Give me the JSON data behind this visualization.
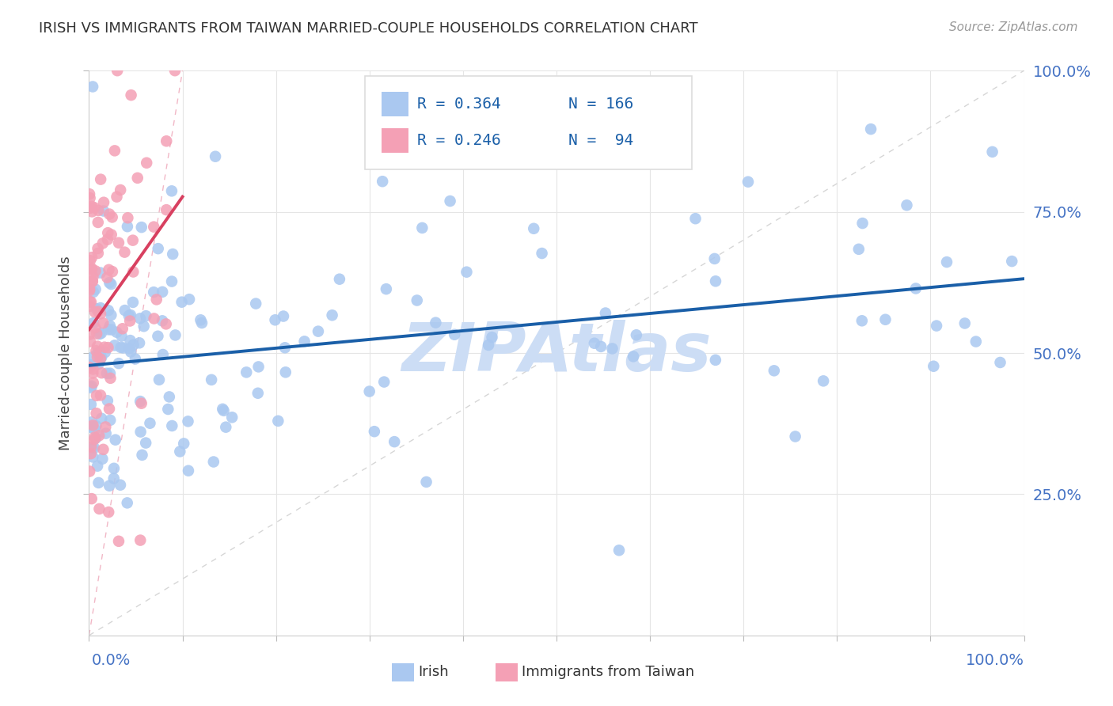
{
  "title": "IRISH VS IMMIGRANTS FROM TAIWAN MARRIED-COUPLE HOUSEHOLDS CORRELATION CHART",
  "source": "Source: ZipAtlas.com",
  "ylabel": "Married-couple Households",
  "irish_color": "#aac8f0",
  "taiwan_color": "#f4a0b5",
  "irish_line_color": "#1a5fa8",
  "taiwan_line_color": "#d84060",
  "watermark_color": "#ccddf5",
  "axis_label_color": "#4472c4",
  "title_color": "#333333",
  "source_color": "#999999",
  "grid_color": "#e5e5e5",
  "dashed_color": "#cccccc",
  "dashed_taiwan_color": "#f0b0c0",
  "legend_r1": "R = 0.364",
  "legend_n1": "N = 166",
  "legend_r2": "R = 0.246",
  "legend_n2": "N =  94",
  "blue_text_color": "#1a5fa8",
  "irish_seed": 42,
  "taiwan_seed": 99
}
